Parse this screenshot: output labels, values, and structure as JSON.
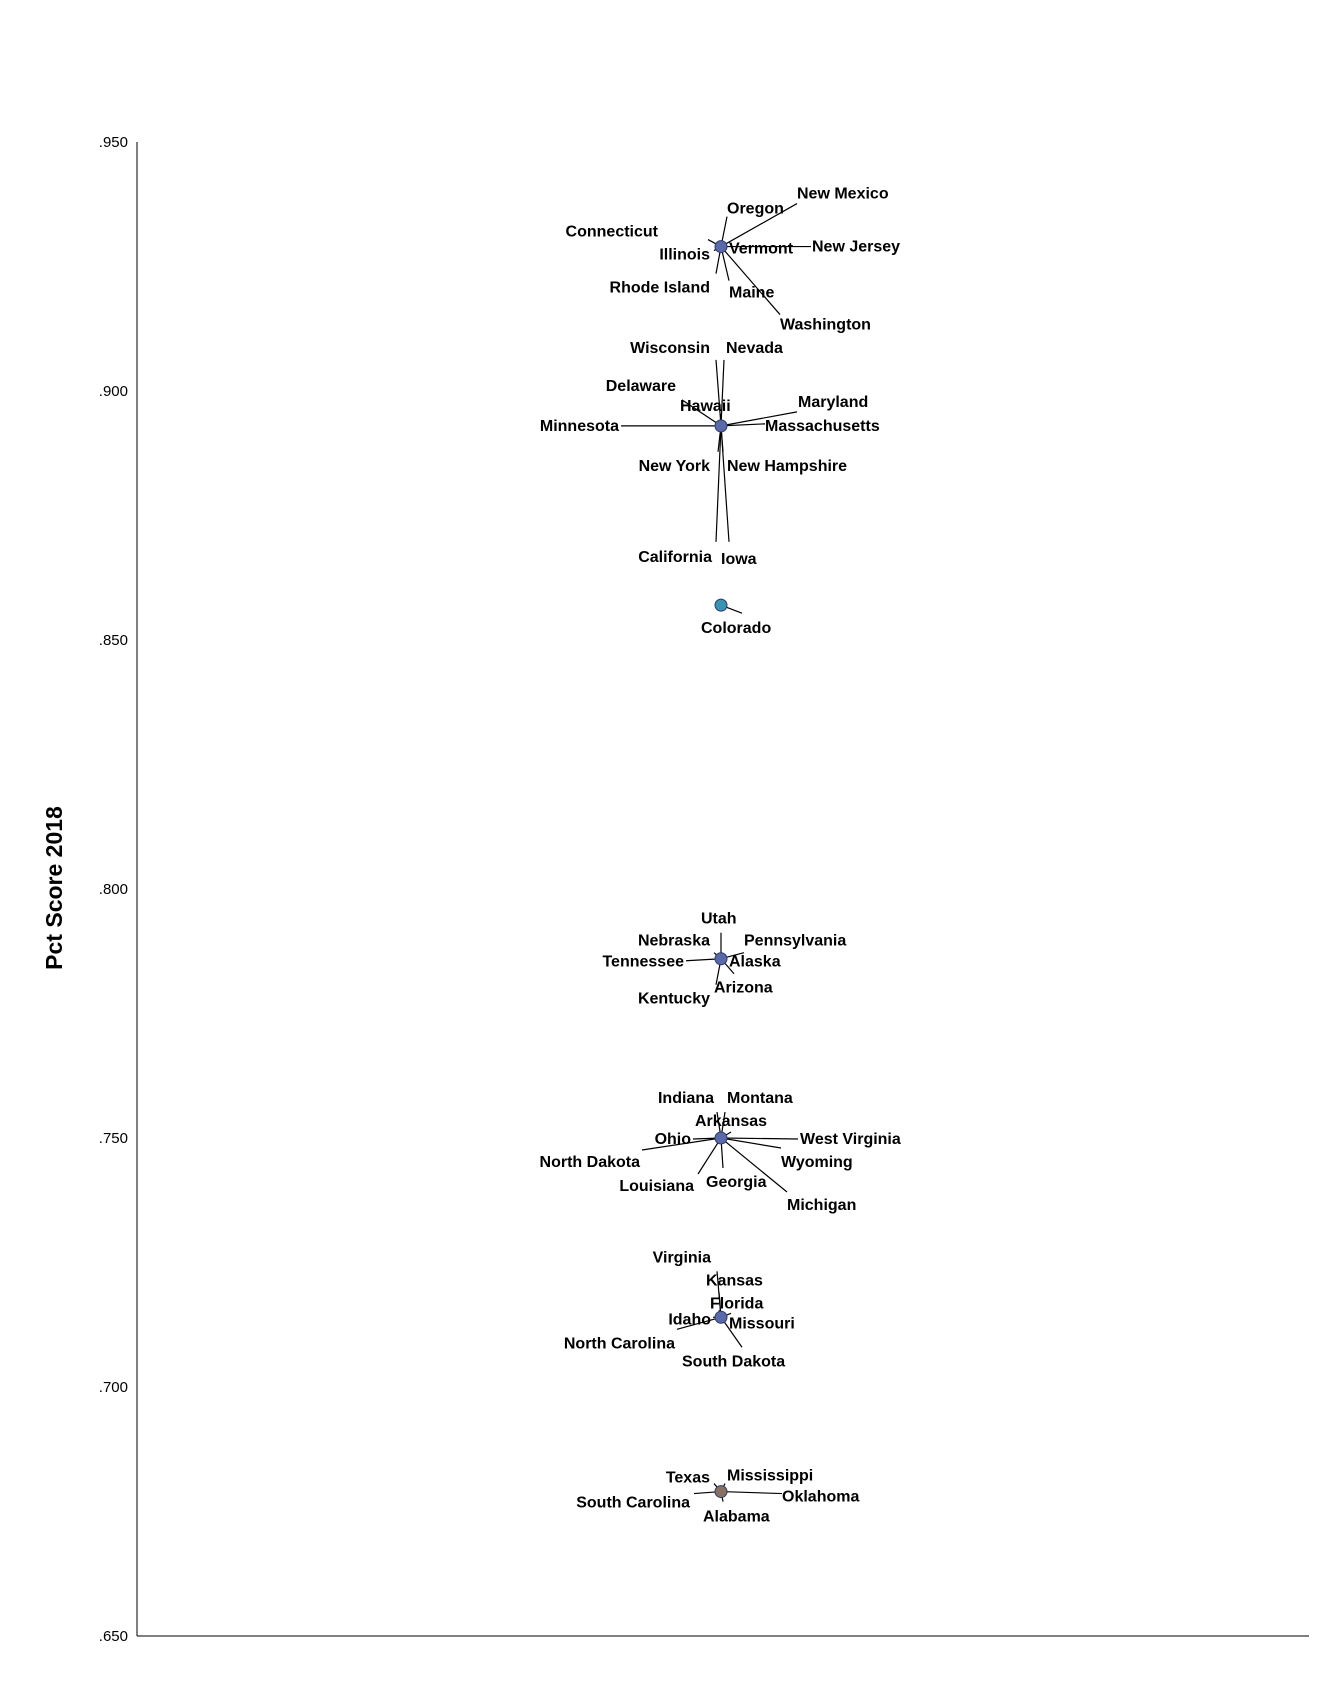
{
  "chart_data": {
    "type": "scatter",
    "title": "",
    "xlabel": "",
    "ylabel": "Pct Score 2018",
    "ylim": [
      0.65,
      0.95
    ],
    "yticks": [
      ".950",
      ".900",
      ".850",
      ".800",
      ".750",
      ".700",
      ".650"
    ],
    "ytick_values": [
      0.95,
      0.9,
      0.85,
      0.8,
      0.75,
      0.7,
      0.65
    ],
    "grid": false,
    "legend": "none",
    "colors": {
      "point": "#5a6aa8",
      "point_colorado": "#3a93b0",
      "axis": "#000000"
    },
    "clusters": [
      {
        "y": 0.929,
        "color": "#5a6aa8",
        "states": [
          "Connecticut",
          "Illinois",
          "Rhode Island",
          "Oregon",
          "New Mexico",
          "Vermont",
          "New Jersey",
          "Maine",
          "Washington"
        ]
      },
      {
        "y": 0.893,
        "color": "#5a6aa8",
        "states": [
          "Wisconsin",
          "Nevada",
          "Delaware",
          "Hawaii",
          "Minnesota",
          "Maryland",
          "Massachusetts",
          "New York",
          "New Hampshire",
          "California",
          "Iowa"
        ]
      },
      {
        "y": 0.857,
        "color": "#3a93b0",
        "states": [
          "Colorado"
        ]
      },
      {
        "y": 0.786,
        "color": "#5a6aa8",
        "states": [
          "Utah",
          "Nebraska",
          "Pennsylvania",
          "Tennessee",
          "Alaska",
          "Arizona",
          "Kentucky"
        ]
      },
      {
        "y": 0.75,
        "color": "#5a6aa8",
        "states": [
          "Indiana",
          "Montana",
          "Arkansas",
          "Ohio",
          "West Virginia",
          "North Dakota",
          "Wyoming",
          "Louisiana",
          "Georgia",
          "Michigan"
        ]
      },
      {
        "y": 0.714,
        "color": "#5a6aa8",
        "states": [
          "Virginia",
          "Kansas",
          "Florida",
          "Idaho",
          "Missouri",
          "North Carolina",
          "South Dakota"
        ]
      },
      {
        "y": 0.679,
        "color": "#8a7060",
        "states": [
          "Texas",
          "Mississippi",
          "South Carolina",
          "Oklahoma",
          "Alabama"
        ]
      }
    ]
  }
}
